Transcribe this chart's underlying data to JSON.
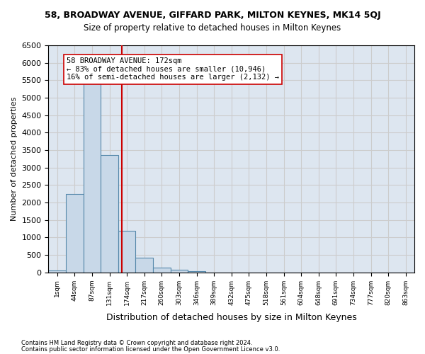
{
  "title": "58, BROADWAY AVENUE, GIFFARD PARK, MILTON KEYNES, MK14 5QJ",
  "subtitle": "Size of property relative to detached houses in Milton Keynes",
  "xlabel": "Distribution of detached houses by size in Milton Keynes",
  "ylabel": "Number of detached properties",
  "bin_labels": [
    "1sqm",
    "44sqm",
    "87sqm",
    "131sqm",
    "174sqm",
    "217sqm",
    "260sqm",
    "303sqm",
    "346sqm",
    "389sqm",
    "432sqm",
    "475sqm",
    "518sqm",
    "561sqm",
    "604sqm",
    "648sqm",
    "691sqm",
    "734sqm",
    "777sqm",
    "820sqm",
    "863sqm"
  ],
  "bar_values": [
    50,
    2250,
    5500,
    3350,
    1200,
    430,
    130,
    80,
    30,
    5,
    2,
    2,
    2,
    2,
    2,
    2,
    2,
    2,
    2,
    2,
    2
  ],
  "bar_color": "#c8d8e8",
  "bar_edge_color": "#5588aa",
  "property_line_x": 3.72,
  "property_line_color": "#cc0000",
  "annotation_text": "58 BROADWAY AVENUE: 172sqm\n← 83% of detached houses are smaller (10,946)\n16% of semi-detached houses are larger (2,132) →",
  "annotation_box_color": "#ffffff",
  "annotation_box_edge_color": "#cc0000",
  "ylim": [
    0,
    6500
  ],
  "yticks": [
    0,
    500,
    1000,
    1500,
    2000,
    2500,
    3000,
    3500,
    4000,
    4500,
    5000,
    5500,
    6000,
    6500
  ],
  "footnote1": "Contains HM Land Registry data © Crown copyright and database right 2024.",
  "footnote2": "Contains public sector information licensed under the Open Government Licence v3.0.",
  "bg_color": "#ffffff",
  "grid_color": "#cccccc",
  "axes_bg_color": "#dde6f0"
}
